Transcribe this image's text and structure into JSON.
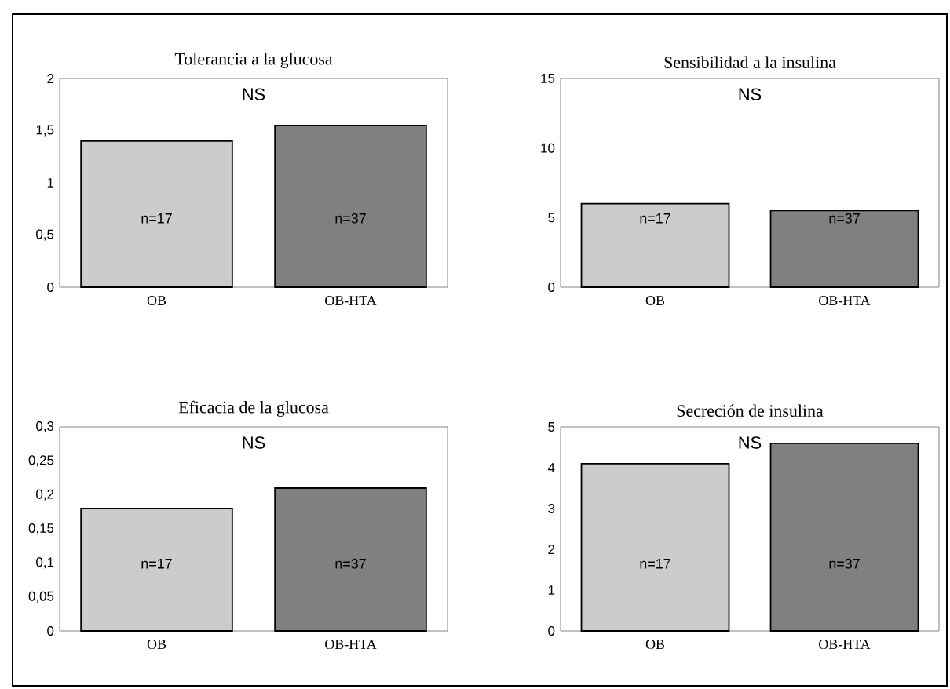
{
  "chart_data": [
    {
      "type": "bar",
      "title": "Tolerancia a la glucosa",
      "categories": [
        "OB",
        "OB-HTA"
      ],
      "values": [
        1.4,
        1.55
      ],
      "colors": [
        "#cccccc",
        "#808080"
      ],
      "ylim": [
        0,
        2
      ],
      "yticks": [
        0,
        {
          "value": 0.5,
          "label": "0,5"
        },
        1,
        {
          "value": 1.5,
          "label": "1,5"
        },
        2
      ],
      "annotations": [
        "NS",
        "n=17",
        "n=37"
      ]
    },
    {
      "type": "bar",
      "title": "Sensibilidad a la insulina",
      "categories": [
        "OB",
        "OB-HTA"
      ],
      "values": [
        6.0,
        5.5
      ],
      "colors": [
        "#cccccc",
        "#808080"
      ],
      "ylim": [
        0,
        15
      ],
      "yticks": [
        0,
        5,
        10,
        15
      ],
      "annotations": [
        "NS",
        "n=17",
        "n=37"
      ]
    },
    {
      "type": "bar",
      "title": "Eficacia de la glucosa",
      "categories": [
        "OB",
        "OB-HTA"
      ],
      "values": [
        0.18,
        0.21
      ],
      "colors": [
        "#cccccc",
        "#808080"
      ],
      "ylim": [
        0,
        0.3
      ],
      "yticks": [
        0,
        {
          "value": 0.05,
          "label": "0,05"
        },
        {
          "value": 0.1,
          "label": "0,1"
        },
        {
          "value": 0.15,
          "label": "0,15"
        },
        {
          "value": 0.2,
          "label": "0,2"
        },
        {
          "value": 0.25,
          "label": "0,25"
        },
        {
          "value": 0.3,
          "label": "0,3"
        }
      ],
      "annotations": [
        "NS",
        "n=17",
        "n=37"
      ]
    },
    {
      "type": "bar",
      "title": "Secreción de insulina",
      "categories": [
        "OB",
        "OB-HTA"
      ],
      "values": [
        4.1,
        4.6
      ],
      "colors": [
        "#cccccc",
        "#808080"
      ],
      "ylim": [
        0,
        5
      ],
      "yticks": [
        0,
        1,
        2,
        3,
        4,
        5
      ],
      "annotations": [
        "NS",
        "n=17",
        "n=37"
      ]
    }
  ]
}
